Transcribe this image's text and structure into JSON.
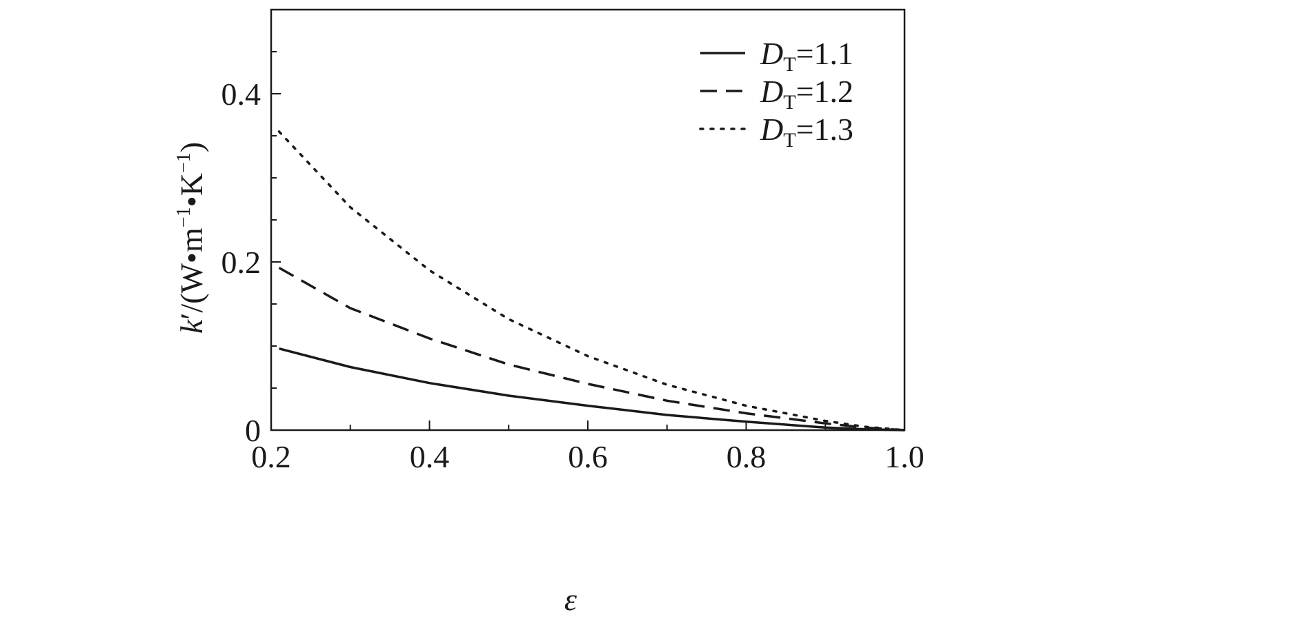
{
  "chart_data": {
    "type": "line",
    "xlabel": "ε",
    "ylabel": {
      "symbol": "k",
      "prime": "′",
      "slash": "/",
      "unit_open": "(W",
      "dot1": "•",
      "m": "m",
      "m_exp": "−1",
      "dot2": "•",
      "K": "K",
      "K_exp": "−1",
      "unit_close": ")"
    },
    "xlim": [
      0.2,
      1.0
    ],
    "ylim": [
      0,
      0.5
    ],
    "x_ticks": [
      {
        "value": 0.2,
        "label": "0.2"
      },
      {
        "value": 0.4,
        "label": "0.4"
      },
      {
        "value": 0.6,
        "label": "0.6"
      },
      {
        "value": 0.8,
        "label": "0.8"
      },
      {
        "value": 1.0,
        "label": "1.0"
      }
    ],
    "y_ticks": [
      {
        "value": 0,
        "label": "0"
      },
      {
        "value": 0.2,
        "label": "0.2"
      },
      {
        "value": 0.4,
        "label": "0.4"
      }
    ],
    "x_minor_step": 0.1,
    "y_minor_step": 0.05,
    "grid": false,
    "legend_position": "top-right",
    "series": [
      {
        "label_main": "D",
        "label_sub": "T",
        "label_value": "=1.1",
        "line_style": "solid",
        "x": [
          0.21,
          0.3,
          0.4,
          0.5,
          0.6,
          0.7,
          0.8,
          0.9,
          0.95,
          1.0
        ],
        "y": [
          0.097,
          0.075,
          0.056,
          0.041,
          0.029,
          0.018,
          0.01,
          0.003,
          0.001,
          0.0
        ]
      },
      {
        "label_main": "D",
        "label_sub": "T",
        "label_value": "=1.2",
        "line_style": "dashed",
        "x": [
          0.21,
          0.3,
          0.4,
          0.5,
          0.6,
          0.7,
          0.8,
          0.9,
          0.95,
          1.0
        ],
        "y": [
          0.193,
          0.145,
          0.109,
          0.078,
          0.055,
          0.035,
          0.02,
          0.008,
          0.003,
          0.0
        ]
      },
      {
        "label_main": "D",
        "label_sub": "T",
        "label_value": "=1.3",
        "line_style": "dotted",
        "x": [
          0.21,
          0.3,
          0.4,
          0.5,
          0.6,
          0.7,
          0.8,
          0.9,
          0.95,
          1.0
        ],
        "y": [
          0.355,
          0.265,
          0.19,
          0.132,
          0.088,
          0.054,
          0.029,
          0.011,
          0.004,
          0.0
        ]
      }
    ]
  },
  "colors": {
    "line": "#1a1a1a",
    "axis": "#1a1a1a",
    "background": "#ffffff"
  }
}
